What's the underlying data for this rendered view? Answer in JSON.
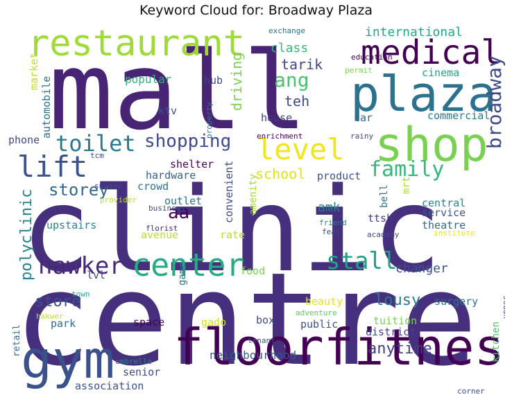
{
  "title": "Keyword Cloud for: Broadway Plaza",
  "chart_data": {
    "type": "wordcloud",
    "words": [
      {
        "text": "centre",
        "weight": 100,
        "color": "#46307e"
      },
      {
        "text": "clinic",
        "weight": 97,
        "color": "#46307e"
      },
      {
        "text": "mall",
        "weight": 95,
        "color": "#482475"
      },
      {
        "text": "floorfitness",
        "weight": 55,
        "color": "#440154"
      },
      {
        "text": "gym",
        "weight": 52,
        "color": "#3b518b"
      },
      {
        "text": "plaza",
        "weight": 48,
        "color": "#2c728e"
      },
      {
        "text": "shop",
        "weight": 46,
        "color": "#7ad151"
      },
      {
        "text": "restaurant",
        "weight": 40,
        "color": "#a0da39"
      },
      {
        "text": "medical",
        "weight": 36,
        "color": "#440154"
      },
      {
        "text": "center",
        "weight": 32,
        "color": "#25ac82"
      },
      {
        "text": "level",
        "weight": 28,
        "color": "#f1e51d"
      },
      {
        "text": "lift",
        "weight": 28,
        "color": "#3b518b"
      },
      {
        "text": "hawker",
        "weight": 24,
        "color": "#482878"
      },
      {
        "text": "stall",
        "weight": 22,
        "color": "#1fa187"
      },
      {
        "text": "toilet",
        "weight": 22,
        "color": "#2a788e"
      },
      {
        "text": "family",
        "weight": 20,
        "color": "#35b779"
      },
      {
        "text": "broadway",
        "weight": 20,
        "color": "#3e4989"
      },
      {
        "text": "shopping",
        "weight": 17,
        "color": "#3e4989"
      },
      {
        "text": "ang",
        "weight": 18,
        "color": "#4ac16d"
      },
      {
        "text": "storey",
        "weight": 16,
        "color": "#31688e"
      },
      {
        "text": "aa",
        "weight": 16,
        "color": "#440154"
      },
      {
        "text": "polyclinic",
        "weight": 15,
        "color": "#26828e"
      },
      {
        "text": "store",
        "weight": 15,
        "color": "#3b518b"
      },
      {
        "text": "lousy",
        "weight": 15,
        "color": "#2a788e"
      },
      {
        "text": "anytime",
        "weight": 15,
        "color": "#433e85"
      },
      {
        "text": "school",
        "weight": 14,
        "color": "#dde318"
      },
      {
        "text": "teh",
        "weight": 14,
        "color": "#3e4989"
      },
      {
        "text": "tarik",
        "weight": 14,
        "color": "#404688"
      },
      {
        "text": "driving",
        "weight": 13,
        "color": "#7ad151"
      },
      {
        "text": "international",
        "weight": 13,
        "color": "#22a884"
      },
      {
        "text": "class",
        "weight": 12,
        "color": "#38b977"
      },
      {
        "text": "amk",
        "weight": 13,
        "color": "#26828e"
      },
      {
        "text": "changer",
        "weight": 12,
        "color": "#3b528b"
      },
      {
        "text": "neighbourhood",
        "weight": 11,
        "color": "#38588c"
      },
      {
        "text": "popular",
        "weight": 11,
        "color": "#2fb47c"
      },
      {
        "text": "commercial",
        "weight": 10,
        "color": "#2a788e"
      },
      {
        "text": "cinema",
        "weight": 10,
        "color": "#22a884"
      },
      {
        "text": "car",
        "weight": 10,
        "color": "#31688e"
      },
      {
        "text": "house",
        "weight": 10,
        "color": "#443a83"
      },
      {
        "text": "ktv",
        "weight": 10,
        "color": "#3b528b"
      },
      {
        "text": "hub",
        "weight": 10,
        "color": "#3e4989"
      },
      {
        "text": "automobile",
        "weight": 9,
        "color": "#2c728e"
      },
      {
        "text": "market",
        "weight": 9,
        "color": "#bddf26"
      },
      {
        "text": "phone",
        "weight": 10,
        "color": "#3e4a89"
      },
      {
        "text": "upstairs",
        "weight": 10,
        "color": "#26828e"
      },
      {
        "text": "shelter",
        "weight": 10,
        "color": "#440154"
      },
      {
        "text": "hardware",
        "weight": 10,
        "color": "#355f8d"
      },
      {
        "text": "crowd",
        "weight": 10,
        "color": "#2c728e"
      },
      {
        "text": "outlet",
        "weight": 10,
        "color": "#2c728e"
      },
      {
        "text": "avenue",
        "weight": 10,
        "color": "#b5de2b"
      },
      {
        "text": "convenient",
        "weight": 10,
        "color": "#3e4a89"
      },
      {
        "text": "amenity",
        "weight": 9,
        "color": "#a8db34"
      },
      {
        "text": "rate",
        "weight": 10,
        "color": "#b5de2b"
      },
      {
        "text": "product",
        "weight": 10,
        "color": "#3b528b"
      },
      {
        "text": "central",
        "weight": 10,
        "color": "#26828e"
      },
      {
        "text": "service",
        "weight": 10,
        "color": "#38588c"
      },
      {
        "text": "theatre",
        "weight": 10,
        "color": "#31688e"
      },
      {
        "text": "ttsh",
        "weight": 10,
        "color": "#443a83"
      },
      {
        "text": "bell",
        "weight": 9,
        "color": "#2c728e"
      },
      {
        "text": "mrt",
        "weight": 9,
        "color": "#a8db34"
      },
      {
        "text": "food",
        "weight": 10,
        "color": "#7ad151"
      },
      {
        "text": "lvl",
        "weight": 10,
        "color": "#404688"
      },
      {
        "text": "game",
        "weight": 9,
        "color": "#2c728e"
      },
      {
        "text": "beauty",
        "weight": 10,
        "color": "#e5e419"
      },
      {
        "text": "box",
        "weight": 10,
        "color": "#3e4989"
      },
      {
        "text": "public",
        "weight": 10,
        "color": "#3b528b"
      },
      {
        "text": "space",
        "weight": 10,
        "color": "#440154"
      },
      {
        "text": "gado",
        "weight": 10,
        "color": "#d0e11c"
      },
      {
        "text": "park",
        "weight": 10,
        "color": "#2f6c8e"
      },
      {
        "text": "district",
        "weight": 10,
        "color": "#404688"
      },
      {
        "text": "tuition",
        "weight": 10,
        "color": "#7ad151"
      },
      {
        "text": "surgery",
        "weight": 10,
        "color": "#2c728e"
      },
      {
        "text": "kitchen",
        "weight": 9,
        "color": "#52c569"
      },
      {
        "text": "senior",
        "weight": 10,
        "color": "#3e4989"
      },
      {
        "text": "association",
        "weight": 10,
        "color": "#3b528b"
      },
      {
        "text": "retail",
        "weight": 8,
        "color": "#2c728e"
      },
      {
        "text": "umbrella",
        "weight": 7,
        "color": "#26828e"
      },
      {
        "text": "tenant",
        "weight": 7,
        "color": "#3b528b"
      },
      {
        "text": "adventure",
        "weight": 7,
        "color": "#5ec962"
      },
      {
        "text": "upper",
        "weight": 7,
        "color": "#3e4a89"
      },
      {
        "text": "corner",
        "weight": 7,
        "color": "#3e4989"
      },
      {
        "text": "town",
        "weight": 7,
        "color": "#22a884"
      },
      {
        "text": "hakwer",
        "weight": 7,
        "color": "#c2df23"
      },
      {
        "text": "kio",
        "weight": 7,
        "color": "#3e4989"
      },
      {
        "text": "academy",
        "weight": 7,
        "color": "#3e4989"
      },
      {
        "text": "institute",
        "weight": 7,
        "color": "#e7e419"
      },
      {
        "text": "feat",
        "weight": 7,
        "color": "#3e4989"
      },
      {
        "text": "friend",
        "weight": 7,
        "color": "#26828e"
      },
      {
        "text": "florist",
        "weight": 7,
        "color": "#482878"
      },
      {
        "text": "business",
        "weight": 7,
        "color": "#3e4989"
      },
      {
        "text": "provider",
        "weight": 7,
        "color": "#b5de2b"
      },
      {
        "text": "sunday",
        "weight": 7,
        "color": "#3e4989"
      },
      {
        "text": "tcm",
        "weight": 7,
        "color": "#3e4989"
      },
      {
        "text": "enrichment",
        "weight": 7,
        "color": "#440154"
      },
      {
        "text": "rainy",
        "weight": 7,
        "color": "#3e4989"
      },
      {
        "text": "property",
        "weight": 7,
        "color": "#2c728e"
      },
      {
        "text": "permit",
        "weight": 7,
        "color": "#7ad151"
      },
      {
        "text": "education",
        "weight": 7,
        "color": "#440154"
      },
      {
        "text": "exchange",
        "weight": 7,
        "color": "#2c728e"
      }
    ]
  }
}
